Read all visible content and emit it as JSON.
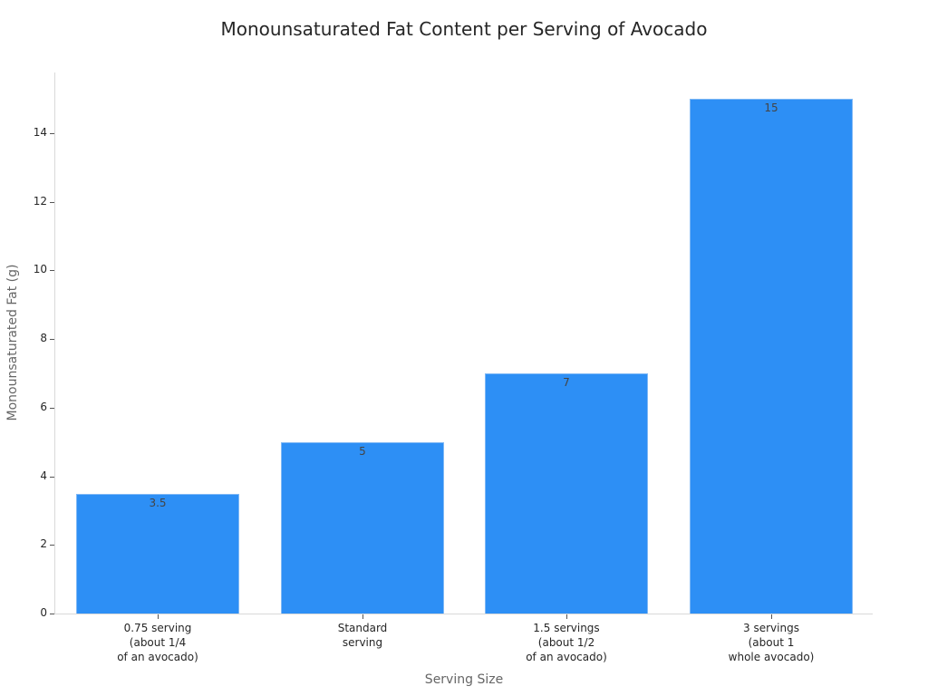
{
  "chart_data": {
    "type": "bar",
    "title": "Monounsaturated Fat Content per Serving of Avocado",
    "xlabel": "Serving Size",
    "ylabel": "Monounsaturated Fat (g)",
    "categories": [
      "0.75 serving\n(about 1/4\nof an avocado)",
      "Standard\nserving",
      "1.5 servings\n(about 1/2\nof an avocado)",
      "3 servings\n(about 1\nwhole avocado)"
    ],
    "values": [
      3.5,
      5,
      7,
      15
    ],
    "data_labels": [
      "3.5",
      "5",
      "7",
      "15"
    ],
    "yticks": [
      0,
      2,
      4,
      6,
      8,
      10,
      12,
      14
    ],
    "ylim": [
      0,
      15.75
    ],
    "grid": false,
    "legend": null,
    "bar_color": "#2d8ff5"
  }
}
